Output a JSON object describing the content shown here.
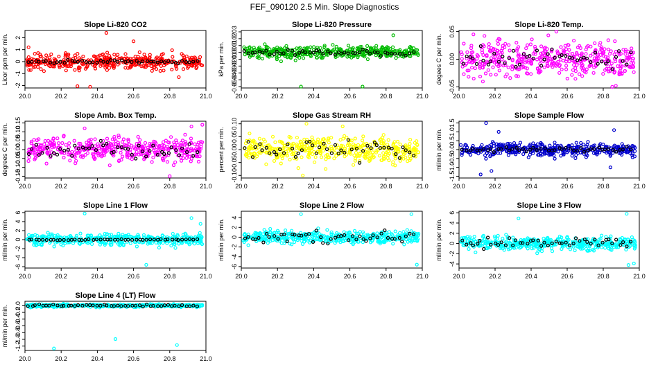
{
  "figure": {
    "title": "FEF_090120  2.5 Min. Slope Diagnostics"
  },
  "chart_data": [
    {
      "type": "scatter",
      "title": "Slope Li-820 CO2",
      "ylabel": "Licor ppm per min.",
      "color": "#ff0000",
      "xlim": [
        20.0,
        21.0
      ],
      "ylim": [
        -2.2,
        2.6
      ],
      "xticks": [
        20.0,
        20.2,
        20.4,
        20.6,
        20.8,
        21.0
      ],
      "yticks": [
        -2,
        -1,
        0,
        1,
        2
      ],
      "spread": 0.45,
      "black_spread": 0.12,
      "outliers": [
        [
          20.36,
          -2.1
        ],
        [
          20.45,
          2.4
        ],
        [
          20.29,
          -2.05
        ],
        [
          20.6,
          1.7
        ],
        [
          20.02,
          1.2
        ],
        [
          20.85,
          -1.3
        ]
      ]
    },
    {
      "type": "scatter",
      "title": "Slope Li-820 Pressure",
      "ylabel": "kPa per min.",
      "color": "#00bb00",
      "xlim": [
        20.0,
        21.0
      ],
      "ylim": [
        -0.052,
        0.032
      ],
      "xticks": [
        20.0,
        20.2,
        20.4,
        20.6,
        20.8,
        21.0
      ],
      "yticks": [
        -0.05,
        -0.04,
        -0.03,
        -0.02,
        -0.01,
        0.0,
        0.01,
        0.02,
        0.03
      ],
      "spread": 0.006,
      "black_spread": 0.003,
      "outliers": [
        [
          20.33,
          -0.05
        ],
        [
          20.67,
          -0.05
        ],
        [
          20.84,
          0.025
        ],
        [
          20.13,
          0.012
        ],
        [
          20.22,
          -0.013
        ]
      ]
    },
    {
      "type": "scatter",
      "title": "Slope Li-820 Temp.",
      "ylabel": "degees C per min.",
      "color": "#ff00ff",
      "xlim": [
        20.0,
        21.0
      ],
      "ylim": [
        -0.052,
        0.052
      ],
      "xticks": [
        20.0,
        20.2,
        20.4,
        20.6,
        20.8,
        21.0
      ],
      "yticks": [
        -0.05,
        0.0,
        0.05
      ],
      "spread": 0.022,
      "black_spread": 0.012,
      "outliers": [
        [
          20.85,
          -0.05
        ],
        [
          20.87,
          -0.048
        ],
        [
          20.08,
          0.045
        ],
        [
          20.54,
          0.05
        ]
      ]
    },
    {
      "type": "scatter",
      "title": "Slope Amb. Box Temp.",
      "ylabel": "degrees C per min.",
      "color": "#ff00ff",
      "xlim": [
        20.0,
        21.0
      ],
      "ylim": [
        -0.16,
        0.16
      ],
      "xticks": [
        20.0,
        20.2,
        20.4,
        20.6,
        20.8,
        21.0
      ],
      "yticks": [
        -0.15,
        -0.1,
        -0.05,
        0.0,
        0.05,
        0.1,
        0.15
      ],
      "spread": 0.045,
      "black_spread": 0.03,
      "outliers": [
        [
          20.98,
          0.14
        ],
        [
          20.92,
          0.13
        ],
        [
          20.8,
          -0.15
        ],
        [
          20.33,
          0.12
        ]
      ]
    },
    {
      "type": "scatter",
      "title": "Slope Gas Stream RH",
      "ylabel": "percent per min.",
      "color": "#ffff00",
      "xlim": [
        20.0,
        21.0
      ],
      "ylim": [
        -0.11,
        0.11
      ],
      "xticks": [
        20.0,
        20.2,
        20.4,
        20.6,
        20.8,
        21.0
      ],
      "yticks": [
        -0.1,
        -0.05,
        0.0,
        0.05,
        0.1
      ],
      "spread": 0.035,
      "black_spread": 0.03,
      "outliers": [
        [
          20.34,
          -0.1
        ],
        [
          20.36,
          0.1
        ],
        [
          20.56,
          0.09
        ]
      ]
    },
    {
      "type": "scatter",
      "title": "Slope Sample Flow",
      "ylabel": "ml/min per min.",
      "color": "#0000cc",
      "xlim": [
        20.0,
        21.0
      ],
      "ylim": [
        -1.6,
        1.6
      ],
      "xticks": [
        20.0,
        20.2,
        20.4,
        20.6,
        20.8,
        21.0
      ],
      "yticks": [
        -1.5,
        -1.0,
        -0.5,
        0.0,
        0.5,
        1.0,
        1.5
      ],
      "spread": 0.25,
      "black_spread": 0.1,
      "outliers": [
        [
          20.15,
          1.5
        ],
        [
          20.12,
          -1.4
        ],
        [
          20.18,
          -1.2
        ],
        [
          20.86,
          1.1
        ],
        [
          20.84,
          -1.0
        ],
        [
          20.22,
          1.0
        ]
      ]
    },
    {
      "type": "scatter",
      "title": "Slope Line 1 Flow",
      "ylabel": "ml/min per min.",
      "color": "#00ffff",
      "xlim": [
        20.0,
        21.0
      ],
      "ylim": [
        -6.3,
        6.3
      ],
      "xticks": [
        20.0,
        20.2,
        20.4,
        20.6,
        20.8,
        21.0
      ],
      "yticks": [
        -6,
        -4,
        -2,
        0,
        2,
        4,
        6
      ],
      "spread": 0.9,
      "black_spread": 0.08,
      "outliers": [
        [
          20.33,
          5.8
        ],
        [
          20.67,
          -5.6
        ],
        [
          20.92,
          4.8
        ],
        [
          20.97,
          3.5
        ]
      ]
    },
    {
      "type": "scatter",
      "title": "Slope Line 2 Flow",
      "ylabel": "ml/min per min.",
      "color": "#00ffff",
      "xlim": [
        20.0,
        21.0
      ],
      "ylim": [
        -6.3,
        5.3
      ],
      "xticks": [
        20.0,
        20.2,
        20.4,
        20.6,
        20.8,
        21.0
      ],
      "yticks": [
        -6,
        -4,
        -2,
        0,
        2,
        4
      ],
      "spread": 0.9,
      "black_spread": 0.8,
      "outliers": [
        [
          20.33,
          4.7
        ],
        [
          20.97,
          -5.6
        ],
        [
          20.94,
          4.7
        ]
      ]
    },
    {
      "type": "scatter",
      "title": "Slope Line 3 Flow",
      "ylabel": "ml/min per min.",
      "color": "#00ffff",
      "xlim": [
        20.0,
        21.0
      ],
      "ylim": [
        -4.8,
        6.3
      ],
      "xticks": [
        20.0,
        20.2,
        20.4,
        20.6,
        20.8,
        21.0
      ],
      "yticks": [
        -4,
        -2,
        0,
        2,
        4,
        6
      ],
      "spread": 0.9,
      "black_spread": 0.8,
      "outliers": [
        [
          20.33,
          4.9
        ],
        [
          20.93,
          5.8
        ],
        [
          20.94,
          -4.2
        ],
        [
          20.97,
          -3.9
        ]
      ]
    },
    {
      "type": "scatter",
      "title": "Slope Line 4 (LT) Flow",
      "ylabel": "ml/min per min.",
      "color": "#00ffff",
      "xlim": [
        20.0,
        21.0
      ],
      "ylim": [
        -1.33,
        0.13
      ],
      "xticks": [
        20.0,
        20.2,
        20.4,
        20.6,
        20.8,
        21.0
      ],
      "yticks": [
        -1.2,
        -1.0,
        -0.8,
        -0.6,
        -0.4,
        -0.2,
        0.0
      ],
      "spread": 0.03,
      "black_spread": 0.02,
      "outliers": [
        [
          20.16,
          -1.27
        ],
        [
          20.5,
          -0.99
        ],
        [
          20.84,
          -1.17
        ]
      ]
    }
  ]
}
